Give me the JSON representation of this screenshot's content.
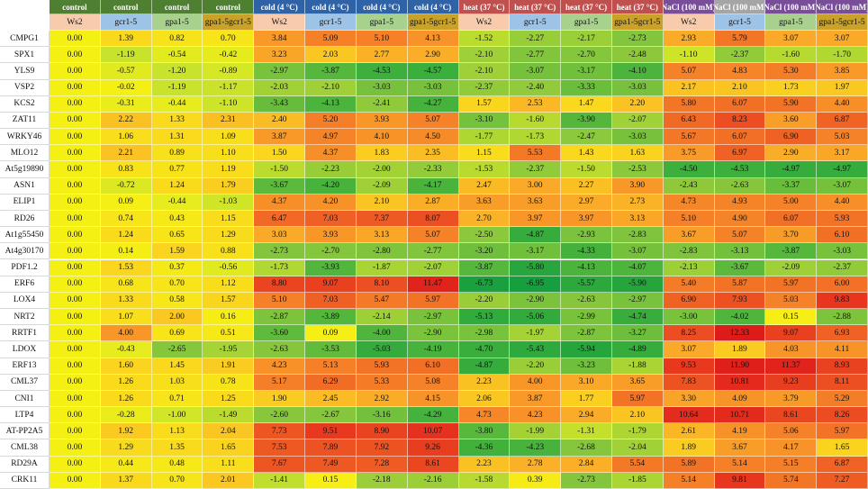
{
  "chart_data": {
    "type": "heatmap",
    "header_conditions": [
      {
        "label": "control",
        "bg": "#4f7f31",
        "light": false
      },
      {
        "label": "control",
        "bg": "#4f7f31",
        "light": false
      },
      {
        "label": "control",
        "bg": "#4f7f31",
        "light": false
      },
      {
        "label": "control",
        "bg": "#4f7f31",
        "light": false
      },
      {
        "label": "cold (4 °C)",
        "bg": "#2f63a8",
        "light": false
      },
      {
        "label": "cold (4 °C)",
        "bg": "#2f63a8",
        "light": false
      },
      {
        "label": "cold (4 °C)",
        "bg": "#2f63a8",
        "light": false
      },
      {
        "label": "cold (4 °C)",
        "bg": "#2f63a8",
        "light": false
      },
      {
        "label": "heat (37 °C)",
        "bg": "#c0504d",
        "light": false
      },
      {
        "label": "heat (37 °C)",
        "bg": "#c0504d",
        "light": false
      },
      {
        "label": "heat (37 °C)",
        "bg": "#c0504d",
        "light": false
      },
      {
        "label": "heat (37 °C)",
        "bg": "#c0504d",
        "light": false
      },
      {
        "label": "NaCl (100 mM)",
        "bg": "#7a4d9b",
        "light": false
      },
      {
        "label": "NaCl (100 mM)",
        "bg": "#a5a5a5",
        "light": false
      },
      {
        "label": "NaCl (100 mM)",
        "bg": "#7a4d9b",
        "light": false
      },
      {
        "label": "NaCl (100 mM)",
        "bg": "#7a4d9b",
        "light": false
      }
    ],
    "genotypes": [
      {
        "label": "Ws2",
        "bg": "#f8cbad"
      },
      {
        "label": "gcr1-5",
        "bg": "#9dc3e6"
      },
      {
        "label": "gpa1-5",
        "bg": "#a9d18e"
      },
      {
        "label": "gpa1-5gcr1-5",
        "bg": "#c9a227"
      },
      {
        "label": "Ws2",
        "bg": "#f8cbad"
      },
      {
        "label": "gcr1-5",
        "bg": "#9dc3e6"
      },
      {
        "label": "gpa1-5",
        "bg": "#a9d18e"
      },
      {
        "label": "gpa1-5gcr1-5",
        "bg": "#c9a227"
      },
      {
        "label": "Ws2",
        "bg": "#f8cbad"
      },
      {
        "label": "gcr1-5",
        "bg": "#9dc3e6"
      },
      {
        "label": "gpa1-5",
        "bg": "#a9d18e"
      },
      {
        "label": "gpa1-5gcr1-5",
        "bg": "#c9a227"
      },
      {
        "label": "Ws2",
        "bg": "#f8cbad"
      },
      {
        "label": "gcr1-5",
        "bg": "#9dc3e6"
      },
      {
        "label": "gpa1-5",
        "bg": "#a9d18e"
      },
      {
        "label": "gpa1-5gcr1-5",
        "bg": "#c9a227"
      }
    ],
    "rows": [
      {
        "gene": "CMPG1",
        "values": [
          "0.00",
          "1.39",
          "0.82",
          "0.70",
          "3.84",
          "5.09",
          "5.10",
          "4.13",
          "-1.52",
          "-2.27",
          "-2.17",
          "-2.73",
          "2.93",
          "5.79",
          "3.07",
          "3.07"
        ]
      },
      {
        "gene": "SPX1",
        "values": [
          "0.00",
          "-1.19",
          "-0.54",
          "-0.42",
          "3.23",
          "2.03",
          "2.77",
          "2.90",
          "-2.10",
          "-2.77",
          "-2.70",
          "-2.48",
          "-1.10",
          "-2.37",
          "-1.60",
          "-1.70"
        ]
      },
      {
        "gene": "YLS9",
        "values": [
          "0.00",
          "-0.57",
          "-1.20",
          "-0.89",
          "-2.97",
          "-3.87",
          "-4.53",
          "-4.57",
          "-2.10",
          "-3.07",
          "-3.17",
          "-4.10",
          "5.07",
          "4.83",
          "5.30",
          "3.85"
        ]
      },
      {
        "gene": "VSP2",
        "values": [
          "0.00",
          "-0.02",
          "-1.19",
          "-1.17",
          "-2.03",
          "-2.10",
          "-3.03",
          "-3.03",
          "-2.37",
          "-2.40",
          "-3.33",
          "-3.03",
          "2.17",
          "2.10",
          "1.73",
          "1.97"
        ]
      },
      {
        "gene": "KCS2",
        "values": [
          "0.00",
          "-0.31",
          "-0.44",
          "-1.10",
          "-3.43",
          "-4.13",
          "-2.41",
          "-4.27",
          "1.57",
          "2.53",
          "1.47",
          "2.20",
          "5.80",
          "6.07",
          "5.90",
          "4.40"
        ]
      },
      {
        "gene": "ZAT11",
        "values": [
          "0.00",
          "2.22",
          "1.33",
          "2.31",
          "2.40",
          "5.20",
          "3.93",
          "5.07",
          "-3.10",
          "-1.60",
          "-3.90",
          "-2.07",
          "6.43",
          "8.23",
          "3.60",
          "6.87"
        ]
      },
      {
        "gene": "WRKY46",
        "values": [
          "0.00",
          "1.06",
          "1.31",
          "1.09",
          "3.87",
          "4.97",
          "4.10",
          "4.50",
          "-1.77",
          "-1.73",
          "-2.47",
          "-3.03",
          "5.67",
          "6.07",
          "6.90",
          "5.03"
        ]
      },
      {
        "gene": "MLO12",
        "values": [
          "0.00",
          "2.21",
          "0.89",
          "1.10",
          "1.50",
          "4.37",
          "1.83",
          "2.35",
          "1.15",
          "5.53",
          "1.43",
          "1.63",
          "3.75",
          "6.97",
          "2.90",
          "3.17"
        ]
      },
      {
        "gene": "At5g19890",
        "values": [
          "0.00",
          "0.83",
          "0.77",
          "1.19",
          "-1.50",
          "-2.23",
          "-2.00",
          "-2.33",
          "-1.53",
          "-2.37",
          "-1.50",
          "-2.53",
          "-4.50",
          "-4.53",
          "-4.97",
          "-4.97"
        ]
      },
      {
        "gene": "ASN1",
        "values": [
          "0.00",
          "-0.72",
          "1.24",
          "1.79",
          "-3.67",
          "-4.20",
          "-2.09",
          "-4.17",
          "2.47",
          "3.00",
          "2.27",
          "3.90",
          "-2.43",
          "-2.63",
          "-3.37",
          "-3.07"
        ]
      },
      {
        "gene": "ELIP1",
        "values": [
          "0.00",
          "0.09",
          "-0.44",
          "-1.03",
          "4.37",
          "4.20",
          "2.10",
          "2.87",
          "3.63",
          "3.63",
          "2.97",
          "2.73",
          "4.73",
          "4.93",
          "5.00",
          "4.40"
        ]
      },
      {
        "gene": "RD26",
        "values": [
          "0.00",
          "0.74",
          "0.43",
          "1.15",
          "6.47",
          "7.03",
          "7.37",
          "8.07",
          "2.70",
          "3.97",
          "3.97",
          "3.13",
          "5.10",
          "4.90",
          "6.07",
          "5.93"
        ]
      },
      {
        "gene": "At1g55450",
        "values": [
          "0.00",
          "1.24",
          "0.65",
          "1.29",
          "3.03",
          "3.93",
          "3.13",
          "5.07",
          "-2.50",
          "-4.87",
          "-2.93",
          "-2.83",
          "3.67",
          "5.07",
          "3.70",
          "6.10"
        ]
      },
      {
        "gene": "At4g30170",
        "values": [
          "0.00",
          "0.14",
          "1.59",
          "0.88",
          "-2.73",
          "-2.70",
          "-2.80",
          "-2.77",
          "-3.20",
          "-3.17",
          "-4.33",
          "-3.07",
          "-2.83",
          "-3.13",
          "-3.87",
          "-3.03"
        ]
      },
      {
        "gene": "PDF1.2",
        "values": [
          "0.00",
          "1.53",
          "0.37",
          "-0.56",
          "-1.73",
          "-3.93",
          "-1.87",
          "-2.07",
          "-3.87",
          "-5.80",
          "-4.13",
          "-4.07",
          "-2.13",
          "-3.67",
          "-2.09",
          "-2.37"
        ]
      },
      {
        "gene": "ERF6",
        "values": [
          "0.00",
          "0.68",
          "0.70",
          "1.12",
          "8.80",
          "9.07",
          "8.10",
          "11.47",
          "-6.73",
          "-6.95",
          "-5.57",
          "-5.90",
          "5.40",
          "5.87",
          "5.97",
          "6.00"
        ]
      },
      {
        "gene": "LOX4",
        "values": [
          "0.00",
          "1.33",
          "0.58",
          "1.57",
          "5.10",
          "7.03",
          "5.47",
          "5.97",
          "-2.20",
          "-2.90",
          "-2.63",
          "-2.97",
          "6.90",
          "7.93",
          "5.03",
          "9.83"
        ]
      },
      {
        "gene": "NRT2",
        "values": [
          "0.00",
          "1.07",
          "2.00",
          "0.16",
          "-2.87",
          "-3.89",
          "-2.14",
          "-2.97",
          "-5.13",
          "-5.06",
          "-2.99",
          "-4.74",
          "-3.00",
          "-4.02",
          "0.15",
          "-2.88"
        ]
      },
      {
        "gene": "RRTF1",
        "values": [
          "0.00",
          "4.00",
          "0.69",
          "0.51",
          "-3.60",
          "0.09",
          "-4.00",
          "-2.90",
          "-2.98",
          "-1.97",
          "-2.87",
          "-3.27",
          "8.25",
          "12.33",
          "9.07",
          "6.93"
        ]
      },
      {
        "gene": "LDOX",
        "values": [
          "0.00",
          "-0.43",
          "-2.65",
          "-1.95",
          "-2.63",
          "-3.53",
          "-5.03",
          "-4.19",
          "-4.70",
          "-5.43",
          "-5.94",
          "-4.89",
          "3.07",
          "1.89",
          "4.03",
          "4.11"
        ]
      },
      {
        "gene": "ERF13",
        "values": [
          "0.00",
          "1.60",
          "1.45",
          "1.91",
          "4.23",
          "5.13",
          "5.93",
          "6.10",
          "-4.87",
          "-2.20",
          "-3.23",
          "-1.88",
          "9.53",
          "11.90",
          "11.37",
          "8.93"
        ]
      },
      {
        "gene": "CML37",
        "values": [
          "0.00",
          "1.26",
          "1.03",
          "0.78",
          "5.17",
          "6.29",
          "5.33",
          "5.08",
          "2.23",
          "4.00",
          "3.10",
          "3.65",
          "7.83",
          "10.81",
          "9.23",
          "8.11"
        ]
      },
      {
        "gene": "CNI1",
        "values": [
          "0.00",
          "1.26",
          "0.71",
          "1.25",
          "1.90",
          "2.45",
          "2.92",
          "4.15",
          "2.06",
          "3.87",
          "1.77",
          "5.97",
          "3.30",
          "4.09",
          "3.79",
          "5.29"
        ]
      },
      {
        "gene": "LTP4",
        "values": [
          "0.00",
          "-0.28",
          "-1.00",
          "-1.49",
          "-2.60",
          "-2.67",
          "-3.16",
          "-4.29",
          "4.73",
          "4.23",
          "2.94",
          "2.10",
          "10.64",
          "10.71",
          "8.61",
          "8.26"
        ]
      },
      {
        "gene": "AT-PP2A5",
        "values": [
          "0.00",
          "1.92",
          "1.13",
          "2.04",
          "7.73",
          "9.51",
          "8.90",
          "10.07",
          "-3.80",
          "-1.99",
          "-1.31",
          "-1.79",
          "2.61",
          "4.19",
          "5.06",
          "5.97"
        ]
      },
      {
        "gene": "CML38",
        "values": [
          "0.00",
          "1.29",
          "1.35",
          "1.65",
          "7.53",
          "7.89",
          "7.92",
          "9.26",
          "-4.36",
          "-4.23",
          "-2.68",
          "-2.04",
          "1.89",
          "3.67",
          "4.17",
          "1.65"
        ]
      },
      {
        "gene": "RD29A",
        "values": [
          "0.00",
          "0.44",
          "0.48",
          "1.11",
          "7.67",
          "7.49",
          "7.28",
          "8.61",
          "2.23",
          "2.78",
          "2.84",
          "5.54",
          "5.89",
          "5.14",
          "5.15",
          "6.87"
        ]
      },
      {
        "gene": "CRK11",
        "values": [
          "0.00",
          "1.37",
          "0.70",
          "2.01",
          "-1.41",
          "0.15",
          "-2.18",
          "-2.16",
          "-1.58",
          "0.39",
          "-2.73",
          "-1.85",
          "5.14",
          "9.81",
          "5.74",
          "7.27"
        ]
      }
    ]
  }
}
